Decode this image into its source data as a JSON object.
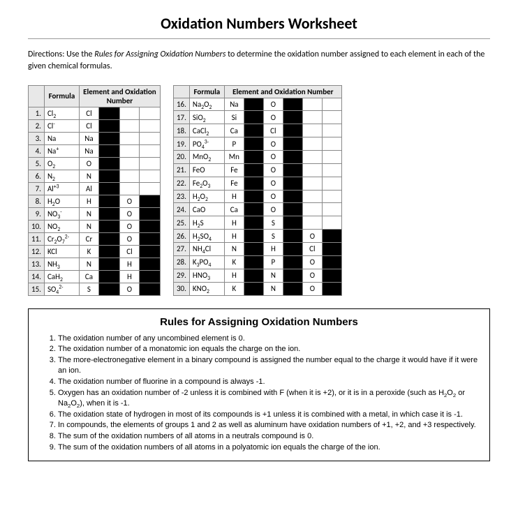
{
  "title": "Oxidation Numbers Worksheet",
  "directions_prefix": "Directions:  Use the ",
  "directions_italic": "Rules for Assigning Oxidation Numbers",
  "directions_suffix": " to determine the oxidation number assigned to each element in each of the given chemical formulas.",
  "left_header_formula": "Formula",
  "left_header_element": "Element and Oxidation Number",
  "right_header_formula": "Formula",
  "right_header_element": "Element and Oxidation Number",
  "left_rows": [
    {
      "n": "1.",
      "f": "Cl<sub>2</sub>",
      "e1": "Cl",
      "e2": "",
      "e3": ""
    },
    {
      "n": "2.",
      "f": "Cl<sup>-</sup>",
      "e1": "Cl",
      "e2": "",
      "e3": ""
    },
    {
      "n": "3.",
      "f": "Na",
      "e1": "Na",
      "e2": "",
      "e3": ""
    },
    {
      "n": "4.",
      "f": "Na<sup>+</sup>",
      "e1": "Na",
      "e2": "",
      "e3": ""
    },
    {
      "n": "5.",
      "f": "O<sub>2</sub>",
      "e1": "O",
      "e2": "",
      "e3": ""
    },
    {
      "n": "6.",
      "f": "N<sub>2</sub>",
      "e1": "N",
      "e2": "",
      "e3": ""
    },
    {
      "n": "7.",
      "f": "Al<sup>+3</sup>",
      "e1": "Al",
      "e2": "",
      "e3": ""
    },
    {
      "n": "8.",
      "f": "H<sub>2</sub>O",
      "e1": "H",
      "e2": "O",
      "e3": ""
    },
    {
      "n": "9.",
      "f": "NO<sub>3</sub><sup>-</sup>",
      "e1": "N",
      "e2": "O",
      "e3": ""
    },
    {
      "n": "10.",
      "f": "NO<sub>2</sub>",
      "e1": "N",
      "e2": "O",
      "e3": ""
    },
    {
      "n": "11.",
      "f": "Cr<sub>2</sub>O<sub>7</sub><sup>2-</sup>",
      "e1": "Cr",
      "e2": "O",
      "e3": ""
    },
    {
      "n": "12.",
      "f": "KCl",
      "e1": "K",
      "e2": "Cl",
      "e3": ""
    },
    {
      "n": "13.",
      "f": "NH<sub>3</sub>",
      "e1": "N",
      "e2": "H",
      "e3": ""
    },
    {
      "n": "14.",
      "f": "CaH<sub>2</sub>",
      "e1": "Ca",
      "e2": "H",
      "e3": ""
    },
    {
      "n": "15.",
      "f": "SO<sub>4</sub><sup>2-</sup>",
      "e1": "S",
      "e2": "O",
      "e3": ""
    }
  ],
  "right_rows": [
    {
      "n": "16.",
      "f": "Na<sub>2</sub>O<sub>2</sub>",
      "e1": "Na",
      "e2": "O",
      "e3": ""
    },
    {
      "n": "17.",
      "f": "SiO<sub>2</sub>",
      "e1": "Si",
      "e2": "O",
      "e3": ""
    },
    {
      "n": "18.",
      "f": "CaCl<sub>2</sub>",
      "e1": "Ca",
      "e2": "Cl",
      "e3": ""
    },
    {
      "n": "19.",
      "f": "PO<sub>4</sub><sup>3-</sup>",
      "e1": "P",
      "e2": "O",
      "e3": ""
    },
    {
      "n": "20.",
      "f": "MnO<sub>2</sub>",
      "e1": "Mn",
      "e2": "O",
      "e3": ""
    },
    {
      "n": "21.",
      "f": "FeO",
      "e1": "Fe",
      "e2": "O",
      "e3": ""
    },
    {
      "n": "22.",
      "f": "Fe<sub>2</sub>O<sub>3</sub>",
      "e1": "Fe",
      "e2": "O",
      "e3": ""
    },
    {
      "n": "23.",
      "f": "H<sub>2</sub>O<sub>2</sub>",
      "e1": "H",
      "e2": "O",
      "e3": ""
    },
    {
      "n": "24.",
      "f": "CaO",
      "e1": "Ca",
      "e2": "O",
      "e3": ""
    },
    {
      "n": "25.",
      "f": "H<sub>2</sub>S",
      "e1": "H",
      "e2": "S",
      "e3": ""
    },
    {
      "n": "26.",
      "f": "H<sub>2</sub>SO<sub>4</sub>",
      "e1": "H",
      "e2": "S",
      "e3": "O"
    },
    {
      "n": "27.",
      "f": "NH<sub>4</sub>Cl",
      "e1": "N",
      "e2": "H",
      "e3": "Cl"
    },
    {
      "n": "28.",
      "f": "K<sub>3</sub>PO<sub>4</sub>",
      "e1": "K",
      "e2": "P",
      "e3": "O"
    },
    {
      "n": "29.",
      "f": "HNO<sub>3</sub>",
      "e1": "H",
      "e2": "N",
      "e3": "O"
    },
    {
      "n": "30.",
      "f": "KNO<sub>2</sub>",
      "e1": "K",
      "e2": "N",
      "e3": "O"
    }
  ],
  "rules_title": "Rules for Assigning Oxidation Numbers",
  "rules": [
    "The oxidation number of any uncombined element is 0.",
    "The oxidation number of a monatomic ion equals the charge on the ion.",
    "The more-electronegative element in a binary compound is assigned the number equal to the charge it would have if it were an ion.",
    "The oxidation number of fluorine in a compound is always -1.",
    "Oxygen has an oxidation number of -2 unless it is combined with F (when it is +2), or it is in a peroxide (such as H<sub>2</sub>O<sub>2</sub> or Na<sub>2</sub>O<sub>2</sub>), when it is -1.",
    "The oxidation state of hydrogen in most of its compounds is +1 unless it is combined with a metal, in which case it is -1.",
    "In compounds, the elements of groups 1 and 2 as well as aluminum have oxidation numbers of +1, +2, and +3 respectively.",
    "The sum of the oxidation numbers of all atoms in a neutrals compound is 0.",
    "The sum of the oxidation numbers of all atoms in a polyatomic ion equals the charge of the ion."
  ]
}
